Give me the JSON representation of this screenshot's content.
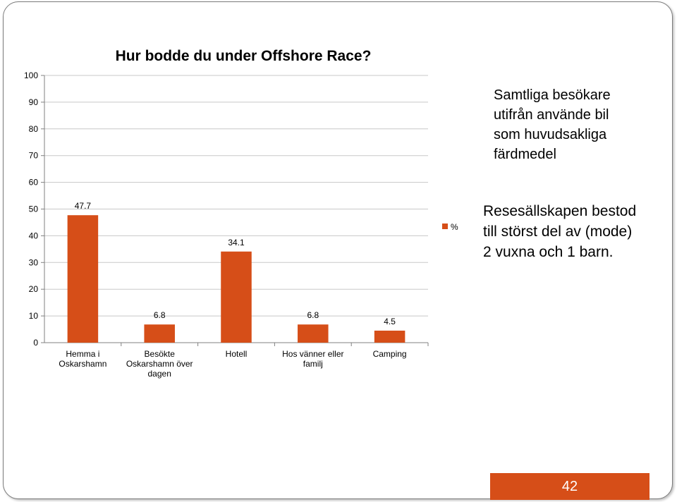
{
  "slide": {
    "note_primary": "Samtliga besökare\nutifrån använde bil\nsom huvudsakliga\nfärdmedel",
    "note_secondary": "Resesällskapen bestod\ntill störst del av (mode)\n2 vuxna och 1 barn.",
    "page_number": "42"
  },
  "colors": {
    "bar": "#d64e18",
    "page_box": "#d64e18",
    "grid": "#c8c8c8"
  },
  "chart_data": {
    "type": "bar",
    "title": "Hur bodde du under Offshore Race?",
    "categories": [
      "Hemma i\nOskarshamn",
      "Besökte\nOskarshamn över\ndagen",
      "Hotell",
      "Hos vänner eller\nfamilj",
      "Camping"
    ],
    "series": [
      {
        "name": "%",
        "values": [
          47.7,
          6.8,
          34.1,
          6.8,
          4.5
        ]
      }
    ],
    "data_labels": [
      "47.7",
      "6.8",
      "34.1",
      "6.8",
      "4.5"
    ],
    "ylim": [
      0,
      100
    ],
    "yticks": [
      0,
      10,
      20,
      30,
      40,
      50,
      60,
      70,
      80,
      90,
      100
    ],
    "grid": true,
    "legend": "right",
    "xlabel": "",
    "ylabel": ""
  }
}
